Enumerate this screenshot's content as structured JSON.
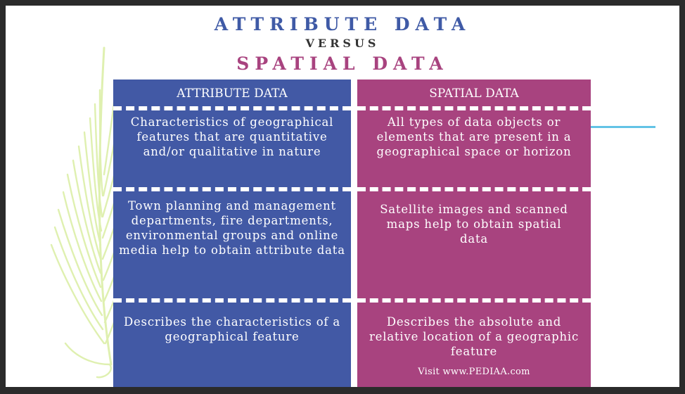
{
  "title": {
    "line1": "ATTRIBUTE DATA",
    "line2": "VERSUS",
    "line3": "SPATIAL DATA"
  },
  "colors": {
    "attribute": "#4259a5",
    "spatial": "#a8437f",
    "fern": "#dff0b0",
    "accent_line": "#62c3e6"
  },
  "columns": {
    "attribute": {
      "header": "ATTRIBUTE DATA",
      "rows": [
        "Characteristics of geographical features that are quantitative and/or qualitative in nature",
        "Town planning and management departments, fire departments, environmental groups and online media help to obtain attribute data",
        "Describes the characteristics of a geographical feature"
      ]
    },
    "spatial": {
      "header": "SPATIAL DATA",
      "rows": [
        "All types of data objects or elements that are present in a geographical space or horizon",
        "Satellite images and scanned maps help to obtain spatial data",
        "Describes the absolute and relative location of a geographic feature"
      ]
    }
  },
  "footer": "Visit www.PEDIAA.com",
  "decor_icons": [
    "fern-leaf-icon"
  ]
}
